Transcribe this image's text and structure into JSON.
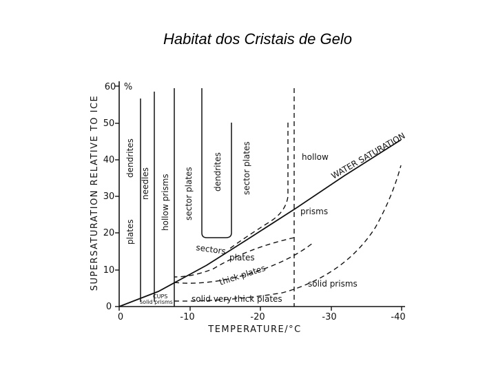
{
  "title": "Habitat dos Cristais de Gelo",
  "diagram": {
    "y_axis_title": "SUPERSATURATION   RELATIVE  TO  ICE",
    "x_axis_title": "TEMPERATURE/°C",
    "y_ticks": [
      "0",
      "10",
      "20",
      "30",
      "40",
      "50",
      "60"
    ],
    "y_unit": "%",
    "x_ticks": [
      "0",
      "-10",
      "-20",
      "-30",
      "-40"
    ],
    "water_saturation_label": "WATER SATURATION",
    "regions": {
      "plates": "plates",
      "dendrites_left": "dendrites",
      "needles": "needles",
      "hollow_prisms": "hollow prisms",
      "sector_plates_mid": "sector plates",
      "dendrites_mid": "dendrites",
      "sector_plates_right": "sector plates",
      "hollow": "hollow",
      "prisms": "prisms",
      "sectors": "sectors",
      "plates_lower": "plates",
      "thick_plates": "thick plates",
      "solid_prisms": "solid prisms",
      "cups": "CUPS",
      "solid_prisms_small": "solid prisms",
      "solid_very_thick_plates": "solid very thick plates"
    }
  }
}
